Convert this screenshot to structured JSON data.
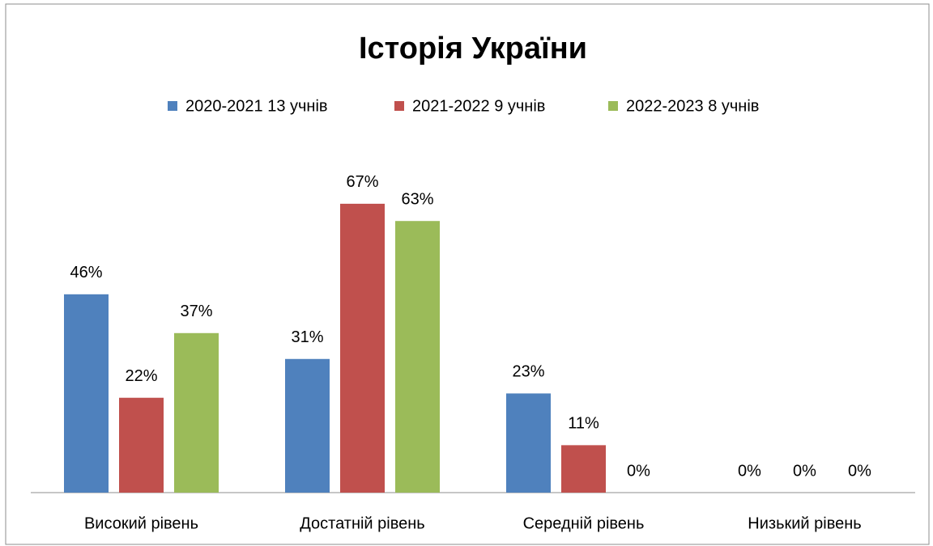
{
  "chart_data": {
    "type": "bar",
    "title": "Історія України",
    "categories": [
      "Високий рівень",
      "Достатній рівень",
      "Середній рівень",
      "Низький рівень"
    ],
    "series": [
      {
        "name": "2020-2021 13 учнів",
        "color": "#4f81bd",
        "values": [
          46,
          31,
          23,
          0
        ],
        "value_labels": [
          "46%",
          "31%",
          "23%",
          "0%"
        ]
      },
      {
        "name": "2021-2022 9 учнів",
        "color": "#c0504d",
        "values": [
          22,
          67,
          11,
          0
        ],
        "value_labels": [
          "22%",
          "67%",
          "11%",
          "0%"
        ]
      },
      {
        "name": "2022-2023 8 учнів",
        "color": "#9bbb59",
        "values": [
          37,
          63,
          0,
          0
        ],
        "value_labels": [
          "37%",
          "63%",
          "0%",
          "0%"
        ]
      }
    ],
    "legend": "top"
  }
}
